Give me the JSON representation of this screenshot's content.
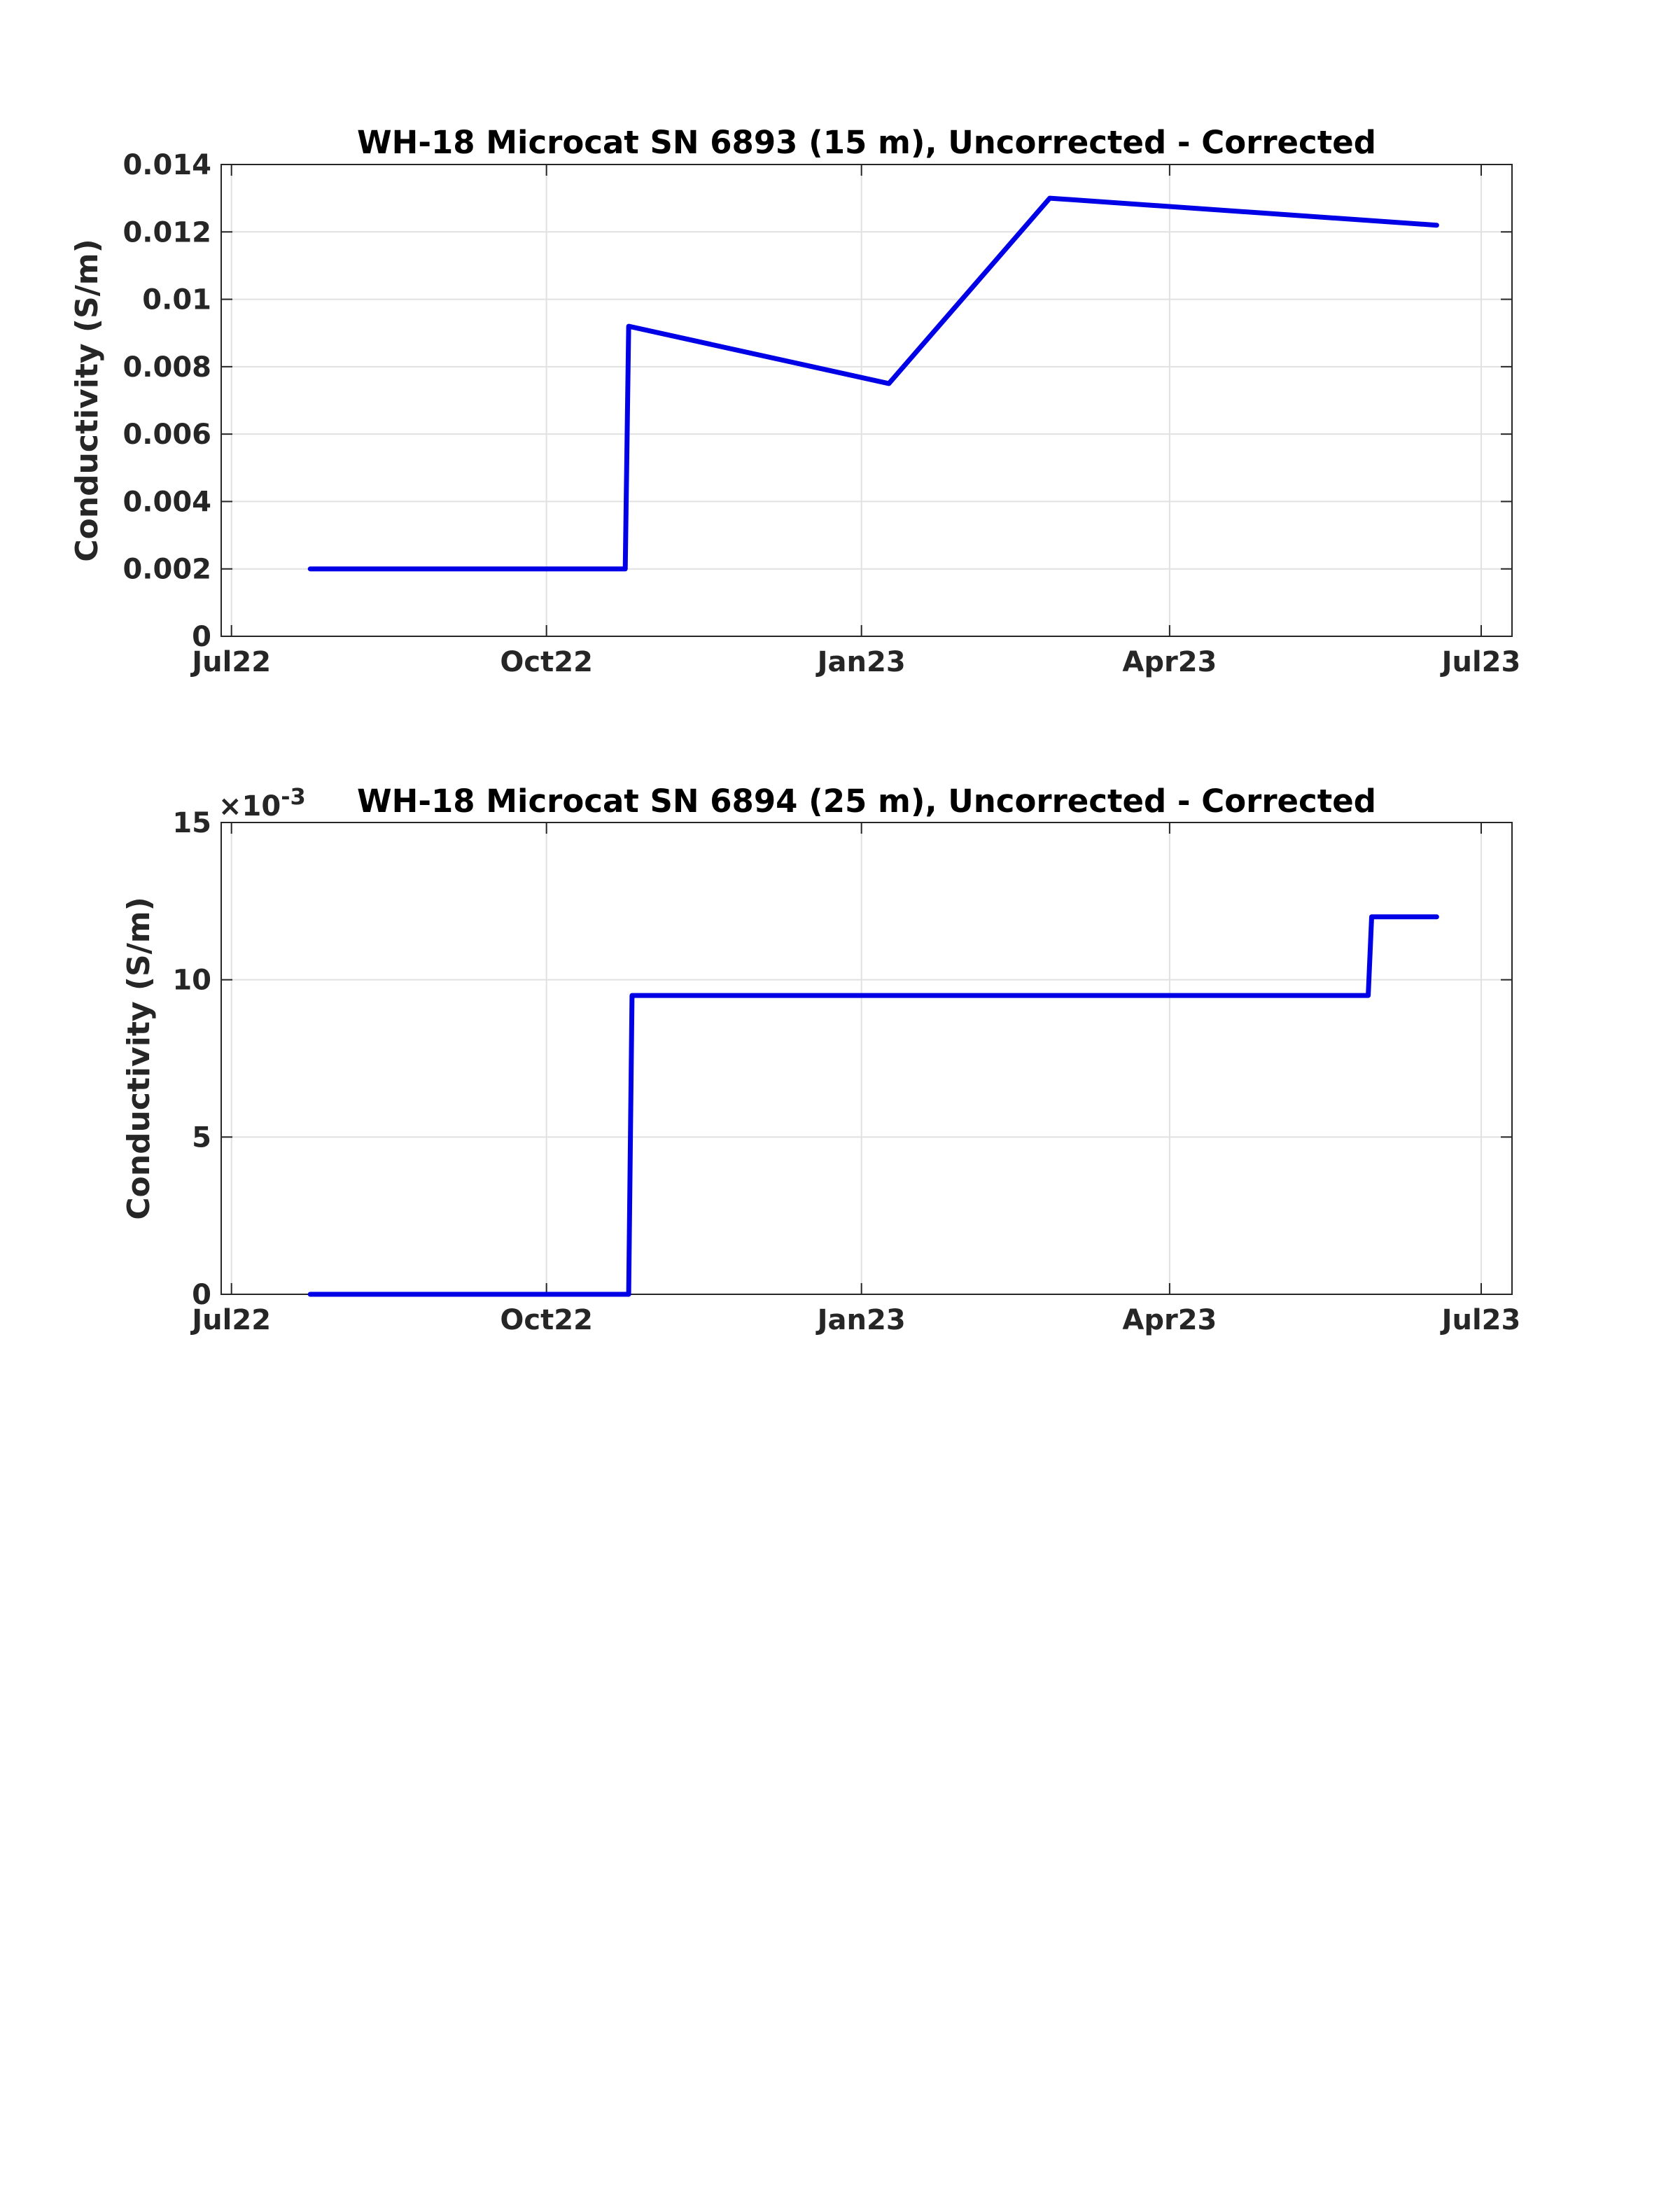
{
  "chart_data": [
    {
      "type": "line",
      "title": "WH-18 Microcat SN 6893 (15 m), Uncorrected - Corrected",
      "ylabel": "Conductivity (S/m)",
      "xlabel": "",
      "xlim": [
        "2022-06-28",
        "2023-07-10"
      ],
      "ylim": [
        0,
        0.014
      ],
      "xticks": [
        {
          "date": "2022-07-01",
          "label": "Jul22"
        },
        {
          "date": "2022-10-01",
          "label": "Oct22"
        },
        {
          "date": "2023-01-01",
          "label": "Jan23"
        },
        {
          "date": "2023-04-01",
          "label": "Apr23"
        },
        {
          "date": "2023-07-01",
          "label": "Jul23"
        }
      ],
      "yticks": [
        {
          "value": 0,
          "label": "0"
        },
        {
          "value": 0.002,
          "label": "0.002"
        },
        {
          "value": 0.004,
          "label": "0.004"
        },
        {
          "value": 0.006,
          "label": "0.006"
        },
        {
          "value": 0.008,
          "label": "0.008"
        },
        {
          "value": 0.01,
          "label": "0.01"
        },
        {
          "value": 0.012,
          "label": "0.012"
        },
        {
          "value": 0.014,
          "label": "0.014"
        }
      ],
      "exponent_label": "",
      "grid": true,
      "color": "#0000e6",
      "series": [
        {
          "x": [
            "2022-07-24",
            "2022-10-24",
            "2022-10-25",
            "2023-01-09",
            "2023-02-25",
            "2023-06-18"
          ],
          "y": [
            0.002,
            0.002,
            0.0092,
            0.0075,
            0.013,
            0.0122
          ]
        }
      ]
    },
    {
      "type": "line",
      "title": "WH-18 Microcat SN 6894 (25 m), Uncorrected - Corrected",
      "ylabel": "Conductivity (S/m)",
      "xlabel": "",
      "xlim": [
        "2022-06-28",
        "2023-07-10"
      ],
      "ylim": [
        0,
        15
      ],
      "xticks": [
        {
          "date": "2022-07-01",
          "label": "Jul22"
        },
        {
          "date": "2022-10-01",
          "label": "Oct22"
        },
        {
          "date": "2023-01-01",
          "label": "Jan23"
        },
        {
          "date": "2023-04-01",
          "label": "Apr23"
        },
        {
          "date": "2023-07-01",
          "label": "Jul23"
        }
      ],
      "yticks": [
        {
          "value": 0,
          "label": "0"
        },
        {
          "value": 5,
          "label": "5"
        },
        {
          "value": 10,
          "label": "10"
        },
        {
          "value": 15,
          "label": "15"
        }
      ],
      "exponent_label": "×10",
      "exponent_power": "-3",
      "grid": true,
      "color": "#0000e6",
      "series": [
        {
          "x": [
            "2022-07-24",
            "2022-10-25",
            "2022-10-26",
            "2023-05-29",
            "2023-05-30",
            "2023-06-18"
          ],
          "y": [
            0,
            0,
            9.5,
            9.5,
            12,
            12
          ]
        }
      ]
    }
  ]
}
